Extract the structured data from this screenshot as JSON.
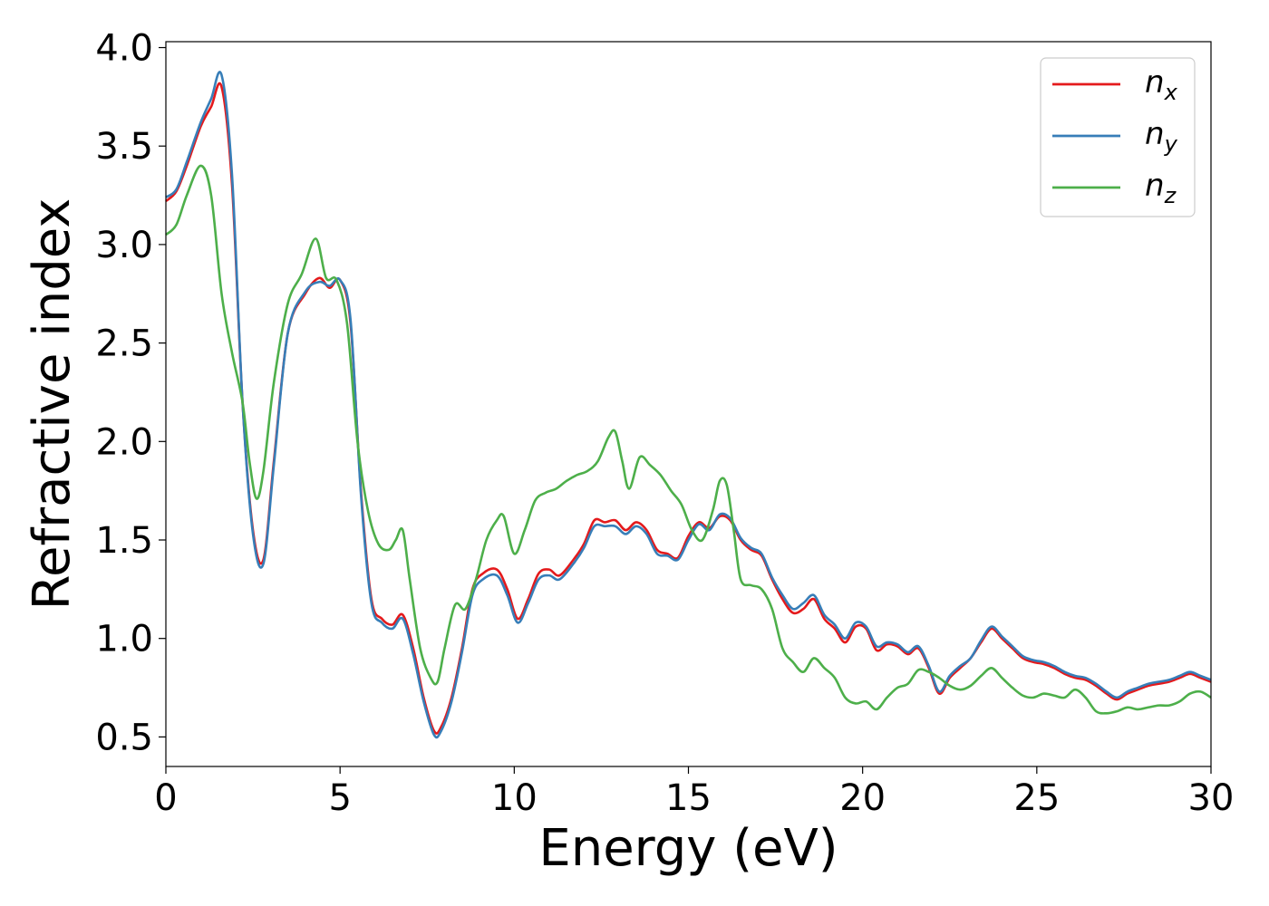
{
  "chart_data": {
    "type": "line",
    "xlabel": "Energy (eV)",
    "ylabel": "Refractive index",
    "xlim": [
      0,
      30
    ],
    "ylim": [
      0.35,
      4.03
    ],
    "xticks": [
      0,
      5,
      10,
      15,
      20,
      25,
      30
    ],
    "yticks": [
      0.5,
      1.0,
      1.5,
      2.0,
      2.5,
      3.0,
      3.5,
      4.0
    ],
    "xtick_labels": [
      "0",
      "5",
      "10",
      "15",
      "20",
      "25",
      "30"
    ],
    "ytick_labels": [
      "0.5",
      "1.0",
      "1.5",
      "2.0",
      "2.5",
      "3.0",
      "3.5",
      "4.0"
    ],
    "grid": false,
    "legend_position": "top-right",
    "series": [
      {
        "name": "n_x",
        "label_main": "n",
        "label_sub": "x",
        "color": "#e41a1c",
        "x": [
          0,
          0.3,
          0.6,
          1.0,
          1.3,
          1.6,
          1.9,
          2.2,
          2.5,
          2.8,
          3.1,
          3.5,
          4.0,
          4.4,
          4.7,
          5.0,
          5.3,
          5.6,
          5.9,
          6.2,
          6.5,
          6.8,
          7.1,
          7.4,
          7.7,
          7.9,
          8.2,
          8.5,
          8.8,
          9.1,
          9.5,
          9.8,
          10.1,
          10.4,
          10.7,
          11.0,
          11.3,
          11.7,
          12.0,
          12.3,
          12.6,
          12.9,
          13.2,
          13.5,
          13.8,
          14.1,
          14.4,
          14.7,
          15.0,
          15.3,
          15.6,
          15.9,
          16.2,
          16.5,
          16.8,
          17.1,
          17.4,
          17.7,
          18.0,
          18.3,
          18.6,
          18.9,
          19.2,
          19.5,
          19.8,
          20.1,
          20.4,
          20.7,
          21.0,
          21.3,
          21.6,
          21.9,
          22.2,
          22.5,
          22.8,
          23.1,
          23.4,
          23.7,
          24.0,
          24.3,
          24.6,
          24.9,
          25.2,
          25.5,
          25.8,
          26.1,
          26.4,
          26.7,
          27.0,
          27.3,
          27.6,
          27.9,
          28.2,
          28.5,
          28.8,
          29.1,
          29.4,
          29.7,
          30.0
        ],
        "values": [
          3.22,
          3.27,
          3.4,
          3.6,
          3.7,
          3.8,
          3.3,
          2.2,
          1.55,
          1.4,
          1.9,
          2.55,
          2.75,
          2.83,
          2.78,
          2.82,
          2.6,
          1.75,
          1.2,
          1.1,
          1.07,
          1.12,
          0.95,
          0.7,
          0.53,
          0.55,
          0.7,
          0.95,
          1.25,
          1.33,
          1.35,
          1.25,
          1.1,
          1.2,
          1.33,
          1.35,
          1.32,
          1.4,
          1.48,
          1.6,
          1.59,
          1.6,
          1.55,
          1.59,
          1.55,
          1.45,
          1.43,
          1.41,
          1.52,
          1.59,
          1.56,
          1.62,
          1.6,
          1.5,
          1.45,
          1.42,
          1.3,
          1.2,
          1.13,
          1.15,
          1.2,
          1.1,
          1.05,
          0.98,
          1.06,
          1.05,
          0.94,
          0.97,
          0.96,
          0.92,
          0.95,
          0.85,
          0.72,
          0.8,
          0.85,
          0.9,
          0.98,
          1.05,
          1.0,
          0.95,
          0.9,
          0.88,
          0.87,
          0.85,
          0.82,
          0.8,
          0.79,
          0.76,
          0.72,
          0.69,
          0.72,
          0.74,
          0.76,
          0.77,
          0.78,
          0.8,
          0.82,
          0.8,
          0.78
        ]
      },
      {
        "name": "n_y",
        "label_main": "n",
        "label_sub": "y",
        "color": "#377eb8",
        "x": [
          0,
          0.3,
          0.6,
          1.0,
          1.3,
          1.6,
          1.9,
          2.2,
          2.5,
          2.8,
          3.1,
          3.5,
          4.0,
          4.4,
          4.7,
          5.0,
          5.3,
          5.6,
          5.9,
          6.2,
          6.5,
          6.8,
          7.1,
          7.4,
          7.7,
          7.9,
          8.2,
          8.5,
          8.8,
          9.1,
          9.5,
          9.8,
          10.1,
          10.4,
          10.7,
          11.0,
          11.3,
          11.7,
          12.0,
          12.3,
          12.6,
          12.9,
          13.2,
          13.5,
          13.8,
          14.1,
          14.4,
          14.7,
          15.0,
          15.3,
          15.6,
          15.9,
          16.2,
          16.5,
          16.8,
          17.1,
          17.4,
          17.7,
          18.0,
          18.3,
          18.6,
          18.9,
          19.2,
          19.5,
          19.8,
          20.1,
          20.4,
          20.7,
          21.0,
          21.3,
          21.6,
          21.9,
          22.2,
          22.5,
          22.8,
          23.1,
          23.4,
          23.7,
          24.0,
          24.3,
          24.6,
          24.9,
          25.2,
          25.5,
          25.8,
          26.1,
          26.4,
          26.7,
          27.0,
          27.3,
          27.6,
          27.9,
          28.2,
          28.5,
          28.8,
          29.1,
          29.4,
          29.7,
          30.0
        ],
        "values": [
          3.24,
          3.28,
          3.42,
          3.62,
          3.74,
          3.86,
          3.35,
          2.2,
          1.53,
          1.38,
          1.88,
          2.55,
          2.76,
          2.81,
          2.79,
          2.82,
          2.62,
          1.73,
          1.18,
          1.08,
          1.05,
          1.1,
          0.92,
          0.68,
          0.51,
          0.53,
          0.68,
          0.93,
          1.22,
          1.3,
          1.32,
          1.22,
          1.08,
          1.18,
          1.3,
          1.32,
          1.3,
          1.38,
          1.46,
          1.57,
          1.57,
          1.57,
          1.53,
          1.57,
          1.53,
          1.43,
          1.42,
          1.4,
          1.5,
          1.58,
          1.55,
          1.63,
          1.61,
          1.51,
          1.46,
          1.43,
          1.31,
          1.22,
          1.15,
          1.18,
          1.22,
          1.12,
          1.07,
          1.0,
          1.08,
          1.06,
          0.96,
          0.98,
          0.97,
          0.93,
          0.96,
          0.86,
          0.73,
          0.81,
          0.86,
          0.9,
          0.99,
          1.06,
          1.01,
          0.96,
          0.91,
          0.89,
          0.88,
          0.86,
          0.83,
          0.81,
          0.8,
          0.77,
          0.73,
          0.7,
          0.73,
          0.75,
          0.77,
          0.78,
          0.79,
          0.81,
          0.83,
          0.81,
          0.79
        ]
      },
      {
        "name": "n_z",
        "label_main": "n",
        "label_sub": "z",
        "color": "#4daf4a",
        "x": [
          0,
          0.3,
          0.6,
          1.0,
          1.3,
          1.6,
          1.9,
          2.2,
          2.4,
          2.6,
          2.8,
          3.1,
          3.5,
          3.9,
          4.3,
          4.6,
          4.9,
          5.2,
          5.5,
          5.8,
          6.1,
          6.4,
          6.6,
          6.8,
          7.0,
          7.3,
          7.6,
          7.8,
          8.0,
          8.3,
          8.6,
          8.9,
          9.2,
          9.5,
          9.7,
          10.0,
          10.3,
          10.6,
          10.9,
          11.2,
          11.5,
          11.8,
          12.1,
          12.4,
          12.7,
          12.9,
          13.1,
          13.3,
          13.6,
          13.9,
          14.2,
          14.5,
          14.8,
          15.1,
          15.4,
          15.7,
          15.9,
          16.1,
          16.3,
          16.5,
          16.8,
          17.1,
          17.4,
          17.7,
          18.0,
          18.3,
          18.6,
          18.9,
          19.2,
          19.5,
          19.8,
          20.1,
          20.4,
          20.7,
          21.0,
          21.3,
          21.6,
          21.9,
          22.2,
          22.5,
          22.8,
          23.1,
          23.4,
          23.7,
          24.0,
          24.3,
          24.6,
          24.9,
          25.2,
          25.5,
          25.8,
          26.1,
          26.4,
          26.7,
          27.0,
          27.3,
          27.6,
          27.9,
          28.2,
          28.5,
          28.8,
          29.1,
          29.4,
          29.7,
          30.0
        ],
        "values": [
          3.05,
          3.1,
          3.25,
          3.4,
          3.25,
          2.75,
          2.45,
          2.2,
          1.9,
          1.71,
          1.85,
          2.3,
          2.7,
          2.85,
          3.03,
          2.83,
          2.82,
          2.6,
          2.0,
          1.65,
          1.48,
          1.45,
          1.5,
          1.55,
          1.3,
          0.95,
          0.8,
          0.78,
          0.95,
          1.17,
          1.15,
          1.3,
          1.5,
          1.6,
          1.62,
          1.43,
          1.55,
          1.7,
          1.74,
          1.76,
          1.8,
          1.83,
          1.85,
          1.9,
          2.02,
          2.05,
          1.9,
          1.76,
          1.92,
          1.88,
          1.83,
          1.75,
          1.68,
          1.55,
          1.5,
          1.65,
          1.8,
          1.78,
          1.55,
          1.3,
          1.27,
          1.25,
          1.15,
          0.95,
          0.88,
          0.83,
          0.9,
          0.85,
          0.8,
          0.7,
          0.67,
          0.68,
          0.64,
          0.7,
          0.75,
          0.77,
          0.84,
          0.83,
          0.8,
          0.76,
          0.74,
          0.76,
          0.81,
          0.85,
          0.8,
          0.75,
          0.71,
          0.7,
          0.72,
          0.71,
          0.7,
          0.74,
          0.7,
          0.63,
          0.62,
          0.63,
          0.65,
          0.64,
          0.65,
          0.66,
          0.66,
          0.68,
          0.72,
          0.73,
          0.7
        ]
      }
    ]
  }
}
